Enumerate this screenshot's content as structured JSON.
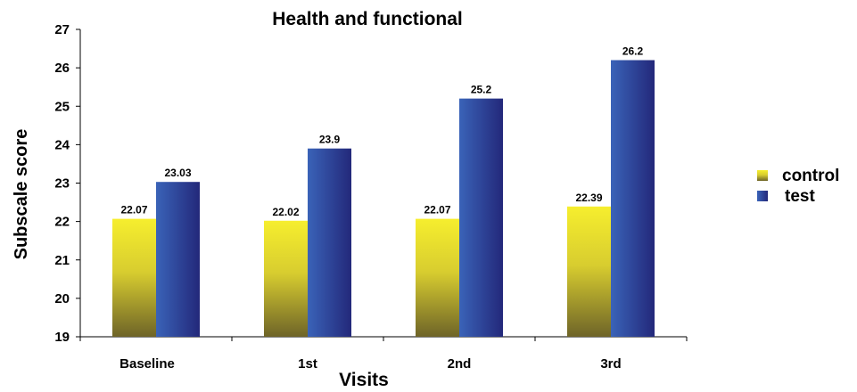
{
  "chart_data": {
    "type": "bar",
    "title": "Health and functional",
    "xlabel": "Visits",
    "ylabel": "Subscale score",
    "categories": [
      "Baseline",
      "1st",
      "2nd",
      "3rd"
    ],
    "series": [
      {
        "name": "control",
        "values": [
          22.07,
          22.02,
          22.07,
          22.39
        ],
        "labels": [
          "22.07",
          "22.02",
          "22.07",
          "22.39"
        ]
      },
      {
        "name": "test",
        "values": [
          23.03,
          23.9,
          25.2,
          26.2
        ],
        "labels": [
          "23.03",
          "23.9",
          "25.2",
          "26.2"
        ]
      }
    ],
    "ylim": [
      19,
      27
    ],
    "yticks": [
      19,
      20,
      21,
      22,
      23,
      24,
      25,
      26,
      27
    ],
    "ytick_labels": [
      "19",
      "20",
      "21",
      "22",
      "23",
      "24",
      "25",
      "26",
      "27"
    ],
    "grid": false,
    "legend_position": "right",
    "colors": {
      "control_light": "#f6ee2e",
      "control_dark": "#6e6428",
      "test_light": "#3a63b8",
      "test_dark": "#23287a"
    }
  }
}
